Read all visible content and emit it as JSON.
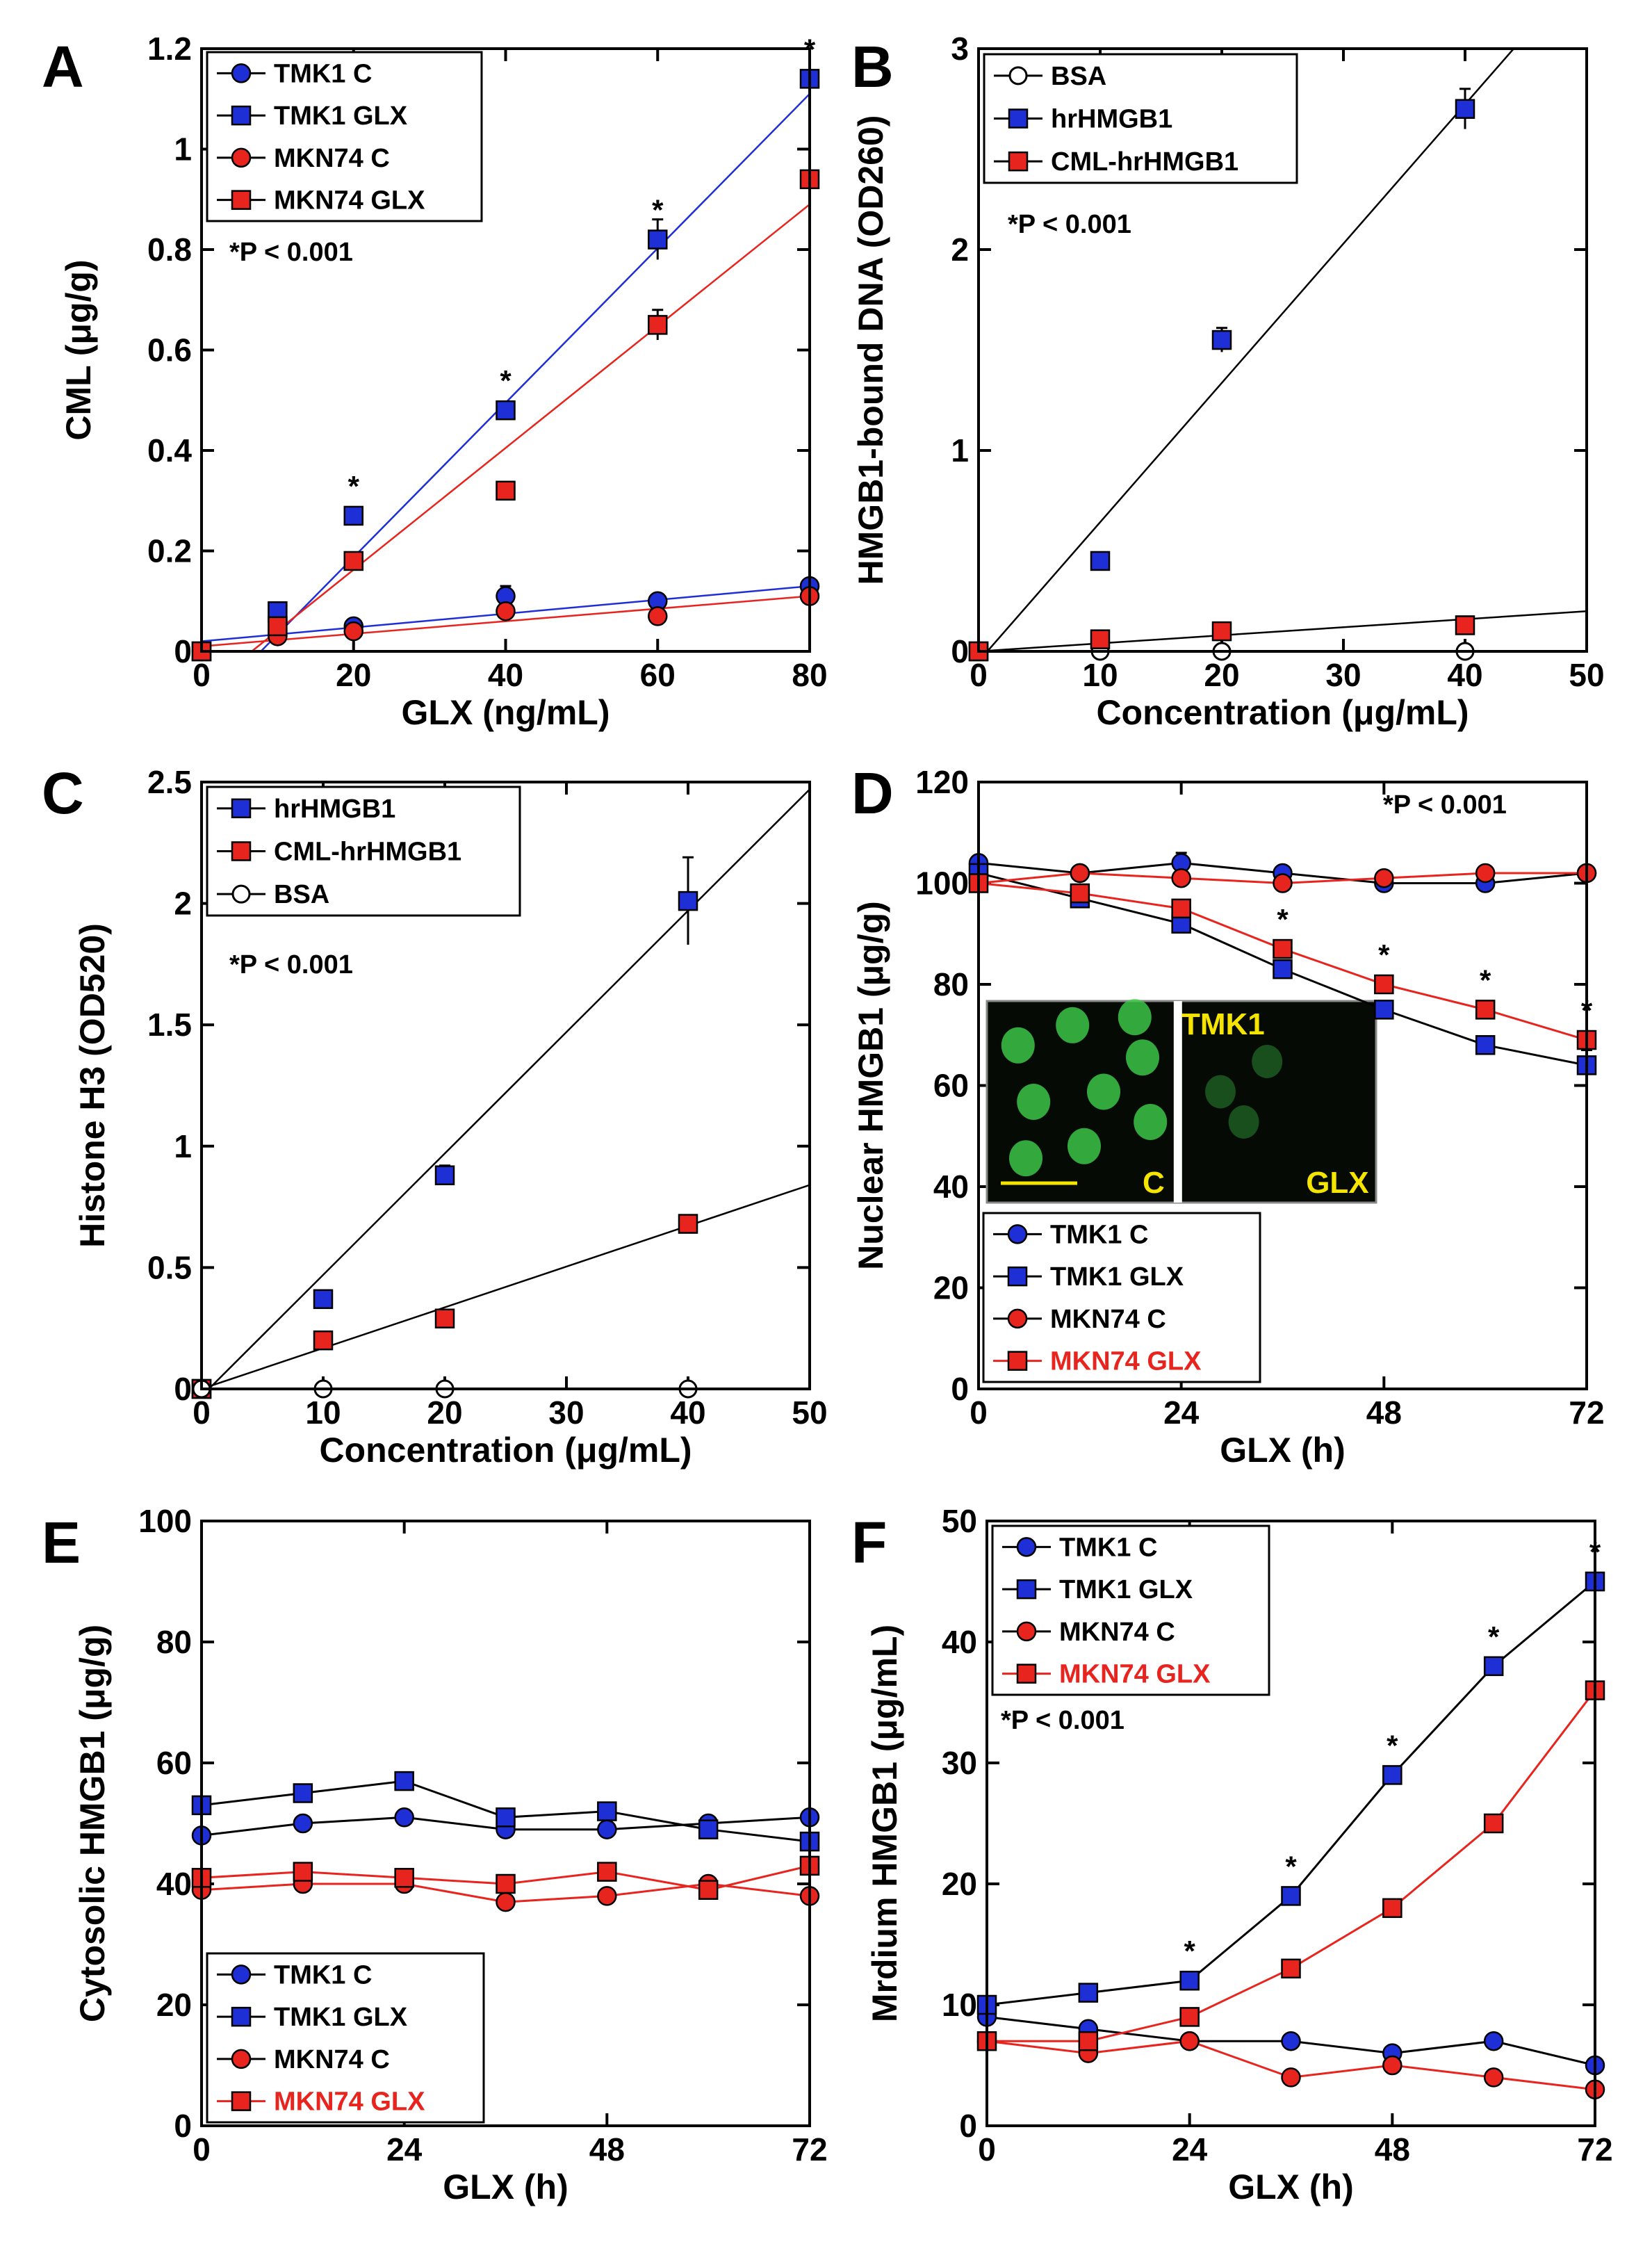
{
  "colors": {
    "blue": "#1f2fd6",
    "red": "#e8241e",
    "black": "#000000",
    "inset_bg": "#050a05",
    "inset_green": "#3fcf4a",
    "inset_text": "#f5e400"
  },
  "chart_data": [
    {
      "id": "A",
      "panel_label": "A",
      "type": "scatter",
      "xlabel": "GLX (ng/mL)",
      "ylabel": "CML (μg/g)",
      "xlim": [
        0,
        80
      ],
      "ylim": [
        0,
        1.2
      ],
      "xticks": [
        0,
        20,
        40,
        60,
        80
      ],
      "xtick_labels": [
        "0",
        "20",
        "40",
        "60",
        "80"
      ],
      "yticks": [
        0,
        0.2,
        0.4,
        0.6,
        0.8,
        1,
        1.2
      ],
      "ytick_labels": [
        "0",
        "0.2",
        "0.4",
        "0.6",
        "0.8",
        "1",
        "1.2"
      ],
      "stat_text": "*P < 0.001",
      "legend_position": "top-left",
      "series": [
        {
          "name": "TMK1 C",
          "marker": "circle",
          "color": "blue",
          "legend_color": "black",
          "x": [
            0,
            10,
            20,
            40,
            60,
            80
          ],
          "y": [
            0.0,
            0.06,
            0.05,
            0.11,
            0.1,
            0.13
          ],
          "err": [
            0,
            0,
            0,
            0.02,
            0,
            0
          ]
        },
        {
          "name": "TMK1 GLX",
          "marker": "square",
          "color": "blue",
          "legend_color": "black",
          "x": [
            0,
            10,
            20,
            40,
            60,
            80
          ],
          "y": [
            0.0,
            0.08,
            0.27,
            0.48,
            0.82,
            1.14
          ],
          "err": [
            0,
            0,
            0,
            0,
            0.04,
            0
          ]
        },
        {
          "name": "MKN74 C",
          "marker": "circle",
          "color": "red",
          "legend_color": "black",
          "x": [
            0,
            10,
            20,
            40,
            60,
            80
          ],
          "y": [
            0.0,
            0.03,
            0.04,
            0.08,
            0.07,
            0.11
          ],
          "err": [
            0,
            0,
            0,
            0,
            0,
            0
          ]
        },
        {
          "name": "MKN74 GLX",
          "marker": "square",
          "color": "red",
          "legend_color": "black",
          "x": [
            0,
            10,
            20,
            40,
            60,
            80
          ],
          "y": [
            0.0,
            0.05,
            0.18,
            0.32,
            0.65,
            0.94
          ],
          "err": [
            0,
            0,
            0,
            0,
            0.03,
            0
          ]
        }
      ],
      "fit_lines": [
        {
          "color": "blue",
          "x": [
            0,
            80
          ],
          "y": [
            -0.12,
            1.11
          ]
        },
        {
          "color": "red",
          "x": [
            0,
            80
          ],
          "y": [
            -0.08,
            0.89
          ]
        },
        {
          "color": "blue",
          "x": [
            0,
            80
          ],
          "y": [
            0.02,
            0.13
          ]
        },
        {
          "color": "red",
          "x": [
            0,
            80
          ],
          "y": [
            0.01,
            0.11
          ]
        }
      ],
      "stars": [
        {
          "x": 20,
          "y": 0.27,
          "text": "*"
        },
        {
          "x": 40,
          "y": 0.48,
          "text": "*"
        },
        {
          "x": 60,
          "y": 0.82,
          "text": "*"
        },
        {
          "x": 80,
          "y": 1.14,
          "text": "*"
        }
      ]
    },
    {
      "id": "B",
      "panel_label": "B",
      "type": "scatter",
      "xlabel": "Concentration (μg/mL)",
      "ylabel": "HMGB1-bound DNA (OD260)",
      "xlim": [
        0,
        50
      ],
      "ylim": [
        0,
        3
      ],
      "xticks": [
        0,
        10,
        20,
        30,
        40,
        50
      ],
      "xtick_labels": [
        "0",
        "10",
        "20",
        "30",
        "40",
        "50"
      ],
      "yticks": [
        0,
        1,
        2,
        3
      ],
      "ytick_labels": [
        "0",
        "1",
        "2",
        "3"
      ],
      "stat_text": "*P < 0.001",
      "legend_position": "top-left",
      "series": [
        {
          "name": "BSA",
          "marker": "open-circle",
          "color": "black",
          "legend_color": "black",
          "x": [
            0,
            10,
            20,
            40
          ],
          "y": [
            0,
            0,
            0,
            0
          ],
          "err": [
            0,
            0,
            0,
            0
          ]
        },
        {
          "name": "hrHMGB1",
          "marker": "square",
          "color": "blue",
          "legend_color": "black",
          "x": [
            0,
            10,
            20,
            40
          ],
          "y": [
            0,
            0.45,
            1.55,
            2.7
          ],
          "err": [
            0,
            0,
            0.06,
            0.1
          ]
        },
        {
          "name": "CML-hrHMGB1",
          "marker": "square",
          "color": "red",
          "legend_color": "black",
          "x": [
            0,
            10,
            20,
            40
          ],
          "y": [
            0,
            0.06,
            0.1,
            0.13
          ],
          "err": [
            0,
            0,
            0,
            0
          ]
        }
      ],
      "fit_lines": [
        {
          "color": "black",
          "x": [
            0,
            44
          ],
          "y": [
            -0.05,
            3.0
          ]
        },
        {
          "color": "black",
          "x": [
            0,
            50
          ],
          "y": [
            0.0,
            0.2
          ]
        }
      ],
      "stars": []
    },
    {
      "id": "C",
      "panel_label": "C",
      "type": "scatter",
      "xlabel": "Concentration (μg/mL)",
      "ylabel": "Histone H3 (OD520)",
      "xlim": [
        0,
        50
      ],
      "ylim": [
        0,
        2.5
      ],
      "xticks": [
        0,
        10,
        20,
        30,
        40,
        50
      ],
      "xtick_labels": [
        "0",
        "10",
        "20",
        "30",
        "40",
        "50"
      ],
      "yticks": [
        0,
        0.5,
        1,
        1.5,
        2,
        2.5
      ],
      "ytick_labels": [
        "0",
        "0.5",
        "1",
        "1.5",
        "2",
        "2.5"
      ],
      "stat_text": "*P < 0.001",
      "legend_position": "top-left",
      "series": [
        {
          "name": "hrHMGB1",
          "marker": "square",
          "color": "blue",
          "legend_color": "black",
          "x": [
            0,
            10,
            20,
            40
          ],
          "y": [
            0,
            0.37,
            0.88,
            2.01
          ],
          "err": [
            0,
            0,
            0.04,
            0.18
          ]
        },
        {
          "name": "CML-hrHMGB1",
          "marker": "square",
          "color": "red",
          "legend_color": "black",
          "x": [
            0,
            10,
            20,
            40
          ],
          "y": [
            0,
            0.2,
            0.29,
            0.68
          ],
          "err": [
            0,
            0,
            0,
            0.03
          ]
        },
        {
          "name": "BSA",
          "marker": "open-circle",
          "color": "black",
          "legend_color": "black",
          "x": [
            0,
            10,
            20,
            40
          ],
          "y": [
            0,
            0,
            0,
            0
          ],
          "err": [
            0,
            0,
            0,
            0
          ]
        }
      ],
      "fit_lines": [
        {
          "color": "black",
          "x": [
            0,
            50
          ],
          "y": [
            -0.03,
            2.47
          ]
        },
        {
          "color": "black",
          "x": [
            0,
            50
          ],
          "y": [
            0.0,
            0.84
          ]
        }
      ],
      "stars": []
    },
    {
      "id": "D",
      "panel_label": "D",
      "type": "line",
      "xlabel": "GLX (h)",
      "ylabel": "Nuclear HMGB1 (μg/g)",
      "xlim": [
        0,
        72
      ],
      "ylim": [
        0,
        120
      ],
      "xticks": [
        0,
        24,
        48,
        72
      ],
      "xtick_labels": [
        "0",
        "24",
        "48",
        "72"
      ],
      "yticks": [
        0,
        20,
        40,
        60,
        80,
        100,
        120
      ],
      "ytick_labels": [
        "0",
        "20",
        "40",
        "60",
        "80",
        "100",
        "120"
      ],
      "stat_text": "*P < 0.001",
      "legend_position": "bottom-left",
      "series": [
        {
          "name": "TMK1 C",
          "marker": "circle",
          "color": "blue",
          "legend_color": "black",
          "x": [
            0,
            12,
            24,
            36,
            48,
            60,
            72
          ],
          "y": [
            104,
            102,
            104,
            102,
            100,
            100,
            102
          ],
          "err": [
            0,
            0,
            2,
            0,
            0,
            0,
            0
          ]
        },
        {
          "name": "TMK1 GLX",
          "marker": "square",
          "color": "blue",
          "legend_color": "black",
          "x": [
            0,
            12,
            24,
            36,
            48,
            60,
            72
          ],
          "y": [
            102,
            97,
            92,
            83,
            75,
            68,
            64
          ],
          "err": [
            0,
            0,
            0,
            0,
            0,
            0,
            3
          ]
        },
        {
          "name": "MKN74 C",
          "marker": "circle",
          "color": "red",
          "legend_color": "black",
          "x": [
            0,
            12,
            24,
            36,
            48,
            60,
            72
          ],
          "y": [
            100,
            102,
            101,
            100,
            101,
            102,
            102
          ],
          "err": [
            0,
            0,
            0,
            0,
            0,
            0,
            0
          ]
        },
        {
          "name": "MKN74 GLX",
          "marker": "square",
          "color": "red",
          "legend_color": "red",
          "x": [
            0,
            12,
            24,
            36,
            48,
            60,
            72
          ],
          "y": [
            100,
            98,
            95,
            87,
            80,
            75,
            69
          ],
          "err": [
            0,
            0,
            0,
            0,
            0,
            0,
            0
          ]
        }
      ],
      "fit_lines": [],
      "stars": [
        {
          "x": 36,
          "y": 87,
          "text": "*"
        },
        {
          "x": 48,
          "y": 80,
          "text": "*"
        },
        {
          "x": 60,
          "y": 75,
          "text": "*"
        },
        {
          "x": 72,
          "y": 69,
          "text": "*"
        }
      ],
      "inset": {
        "label_top": "TMK1",
        "label_left": "C",
        "label_right": "GLX"
      }
    },
    {
      "id": "E",
      "panel_label": "E",
      "type": "line",
      "xlabel": "GLX (h)",
      "ylabel": "Cytosolic HMGB1 (μg/g)",
      "xlim": [
        0,
        72
      ],
      "ylim": [
        0,
        100
      ],
      "xticks": [
        0,
        24,
        48,
        72
      ],
      "xtick_labels": [
        "0",
        "24",
        "48",
        "72"
      ],
      "yticks": [
        0,
        20,
        40,
        60,
        80,
        100
      ],
      "ytick_labels": [
        "0",
        "20",
        "40",
        "60",
        "80",
        "100"
      ],
      "stat_text": "",
      "legend_position": "bottom-left",
      "series": [
        {
          "name": "TMK1 C",
          "marker": "circle",
          "color": "blue",
          "legend_color": "black",
          "x": [
            0,
            12,
            24,
            36,
            48,
            60,
            72
          ],
          "y": [
            48,
            50,
            51,
            49,
            49,
            50,
            51
          ],
          "err": [
            0,
            0,
            0,
            0,
            0,
            0,
            0
          ]
        },
        {
          "name": "TMK1 GLX",
          "marker": "square",
          "color": "blue",
          "legend_color": "black",
          "x": [
            0,
            12,
            24,
            36,
            48,
            60,
            72
          ],
          "y": [
            53,
            55,
            57,
            51,
            52,
            49,
            47
          ],
          "err": [
            0,
            0,
            0,
            0,
            0,
            0,
            0
          ]
        },
        {
          "name": "MKN74 C",
          "marker": "circle",
          "color": "red",
          "legend_color": "black",
          "x": [
            0,
            12,
            24,
            36,
            48,
            60,
            72
          ],
          "y": [
            39,
            40,
            40,
            37,
            38,
            40,
            38
          ],
          "err": [
            0,
            0,
            0,
            0,
            0,
            0,
            0
          ]
        },
        {
          "name": "MKN74 GLX",
          "marker": "square",
          "color": "red",
          "legend_color": "red",
          "x": [
            0,
            12,
            24,
            36,
            48,
            60,
            72
          ],
          "y": [
            41,
            42,
            41,
            40,
            42,
            39,
            43
          ],
          "err": [
            0,
            0,
            0,
            0,
            0,
            0,
            0
          ]
        }
      ],
      "fit_lines": [],
      "stars": []
    },
    {
      "id": "F",
      "panel_label": "F",
      "type": "line",
      "xlabel": "GLX (h)",
      "ylabel": "Mrdium HMGB1 (μg/mL)",
      "xlim": [
        0,
        72
      ],
      "ylim": [
        0,
        50
      ],
      "xticks": [
        0,
        24,
        48,
        72
      ],
      "xtick_labels": [
        "0",
        "24",
        "48",
        "72"
      ],
      "yticks": [
        0,
        10,
        20,
        30,
        40,
        50
      ],
      "ytick_labels": [
        "0",
        "10",
        "20",
        "30",
        "40",
        "50"
      ],
      "stat_text": "*P < 0.001",
      "legend_position": "top-left",
      "series": [
        {
          "name": "TMK1 C",
          "marker": "circle",
          "color": "blue",
          "legend_color": "black",
          "x": [
            0,
            12,
            24,
            36,
            48,
            60,
            72
          ],
          "y": [
            9,
            8,
            7,
            7,
            6,
            7,
            5
          ],
          "err": [
            0,
            0,
            0,
            0,
            0,
            0,
            0
          ]
        },
        {
          "name": "TMK1 GLX",
          "marker": "square",
          "color": "blue",
          "legend_color": "black",
          "x": [
            0,
            12,
            24,
            36,
            48,
            60,
            72
          ],
          "y": [
            10,
            11,
            12,
            19,
            29,
            38,
            45
          ],
          "err": [
            0,
            0,
            0,
            0,
            0,
            0.6,
            0
          ]
        },
        {
          "name": "MKN74 C",
          "marker": "circle",
          "color": "red",
          "legend_color": "black",
          "x": [
            0,
            12,
            24,
            36,
            48,
            60,
            72
          ],
          "y": [
            7,
            6,
            7,
            4,
            5,
            4,
            3
          ],
          "err": [
            0,
            0,
            0,
            0,
            0,
            0,
            0
          ]
        },
        {
          "name": "MKN74 GLX",
          "marker": "square",
          "color": "red",
          "legend_color": "red",
          "x": [
            0,
            12,
            24,
            36,
            48,
            60,
            72
          ],
          "y": [
            7,
            7,
            9,
            13,
            18,
            25,
            36
          ],
          "err": [
            0,
            0,
            0,
            0,
            0,
            0,
            0
          ]
        }
      ],
      "fit_lines": [],
      "stars": [
        {
          "x": 24,
          "y": 12,
          "text": "*"
        },
        {
          "x": 36,
          "y": 19,
          "text": "*"
        },
        {
          "x": 48,
          "y": 29,
          "text": "*"
        },
        {
          "x": 60,
          "y": 38,
          "text": "*"
        },
        {
          "x": 72,
          "y": 45,
          "text": "*"
        }
      ]
    }
  ]
}
